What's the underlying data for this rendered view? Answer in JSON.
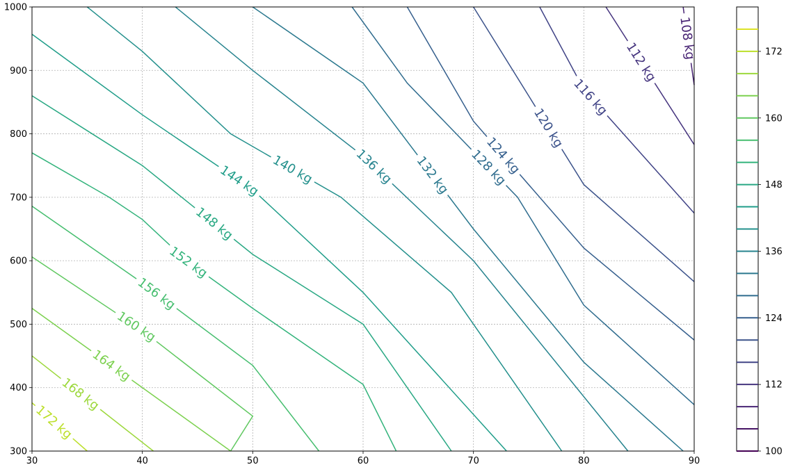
{
  "chart_data": {
    "type": "contour",
    "xlim": [
      30,
      90
    ],
    "ylim": [
      300,
      1000
    ],
    "x_ticks": [
      "30",
      "40",
      "50",
      "60",
      "70",
      "80",
      "90"
    ],
    "y_ticks": [
      "300",
      "400",
      "500",
      "600",
      "700",
      "800",
      "900",
      "1000"
    ],
    "grid": true,
    "colorbar": {
      "range": [
        100,
        180
      ],
      "ticks": [
        "100",
        "112",
        "124",
        "136",
        "148",
        "160",
        "172"
      ],
      "levels": [
        100,
        104,
        108,
        112,
        116,
        120,
        124,
        128,
        132,
        136,
        140,
        144,
        148,
        152,
        156,
        160,
        164,
        168,
        172,
        176
      ]
    },
    "contours": [
      {
        "level": 108,
        "label": "108 kg",
        "points": [
          [
            89,
            1000
          ],
          [
            90,
            877
          ]
        ]
      },
      {
        "level": 112,
        "label": "112 kg",
        "points": [
          [
            82,
            1000
          ],
          [
            90,
            783
          ]
        ]
      },
      {
        "level": 116,
        "label": "116 kg",
        "points": [
          [
            76,
            1000
          ],
          [
            80,
            870
          ],
          [
            90,
            675
          ]
        ]
      },
      {
        "level": 120,
        "label": "120 kg",
        "points": [
          [
            70,
            1000
          ],
          [
            80,
            720
          ],
          [
            90,
            567
          ]
        ]
      },
      {
        "level": 124,
        "label": "124 kg",
        "points": [
          [
            64,
            1000
          ],
          [
            70,
            820
          ],
          [
            80,
            620
          ],
          [
            90,
            475
          ]
        ]
      },
      {
        "level": 128,
        "label": "128 kg",
        "points": [
          [
            59,
            1000
          ],
          [
            64,
            880
          ],
          [
            74,
            700
          ],
          [
            80,
            530
          ],
          [
            90,
            373
          ]
        ]
      },
      {
        "level": 132,
        "label": "132 kg",
        "points": [
          [
            50,
            1000
          ],
          [
            60,
            880
          ],
          [
            70,
            650
          ],
          [
            80,
            440
          ],
          [
            89,
            300
          ]
        ]
      },
      {
        "level": 136,
        "label": "136 kg",
        "points": [
          [
            43,
            1000
          ],
          [
            50,
            900
          ],
          [
            60,
            765
          ],
          [
            70,
            600
          ],
          [
            84,
            300
          ]
        ]
      },
      {
        "level": 140,
        "label": "140 kg",
        "points": [
          [
            35,
            1000
          ],
          [
            40,
            930
          ],
          [
            48,
            800
          ],
          [
            58,
            700
          ],
          [
            68,
            550
          ],
          [
            78,
            300
          ]
        ]
      },
      {
        "level": 144,
        "label": "144 kg",
        "points": [
          [
            30,
            957
          ],
          [
            40,
            830
          ],
          [
            50,
            712
          ],
          [
            60,
            550
          ],
          [
            73,
            300
          ]
        ]
      },
      {
        "level": 148,
        "label": "148 kg",
        "points": [
          [
            30,
            860
          ],
          [
            40,
            750
          ],
          [
            50,
            610
          ],
          [
            60,
            500
          ],
          [
            68,
            300
          ]
        ]
      },
      {
        "level": 152,
        "label": "152 kg",
        "points": [
          [
            30,
            770
          ],
          [
            37,
            700
          ],
          [
            40,
            665
          ],
          [
            44,
            600
          ],
          [
            50,
            525
          ],
          [
            60,
            405
          ],
          [
            63,
            300
          ]
        ]
      },
      {
        "level": 156,
        "label": "156 kg",
        "points": [
          [
            30,
            686
          ],
          [
            40,
            565
          ],
          [
            50,
            435
          ],
          [
            56,
            300
          ]
        ]
      },
      {
        "level": 160,
        "label": "160 kg",
        "points": [
          [
            30,
            606
          ],
          [
            40,
            490
          ],
          [
            50,
            355
          ],
          [
            48,
            300
          ]
        ]
      },
      {
        "level": 164,
        "label": "164 kg",
        "points": [
          [
            30,
            525
          ],
          [
            40,
            400
          ],
          [
            48,
            300
          ]
        ]
      },
      {
        "level": 168,
        "label": "168 kg",
        "points": [
          [
            30,
            450
          ],
          [
            41,
            300
          ]
        ]
      },
      {
        "level": 172,
        "label": "172 kg",
        "points": [
          [
            30,
            376
          ],
          [
            35,
            300
          ]
        ]
      }
    ]
  }
}
